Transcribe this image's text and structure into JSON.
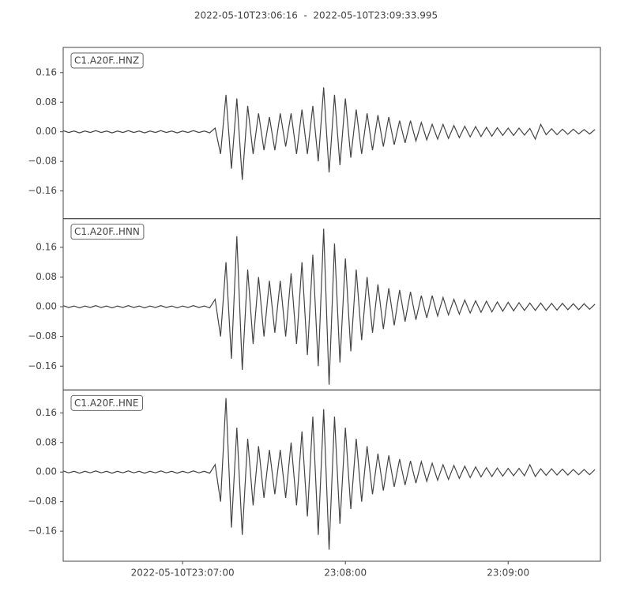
{
  "chart_data": {
    "type": "line",
    "title": "2022-05-10T23:06:16  -  2022-05-10T23:09:33.995",
    "xlim": [
      0,
      197.995
    ],
    "xticks": [
      {
        "value": 44,
        "label": "2022-05-10T23:07:00"
      },
      {
        "value": 104,
        "label": "23:08:00"
      },
      {
        "value": 164,
        "label": "23:09:00"
      }
    ],
    "x": [
      0,
      2,
      4,
      6,
      8,
      10,
      12,
      14,
      16,
      18,
      20,
      22,
      24,
      26,
      28,
      30,
      32,
      34,
      36,
      38,
      40,
      42,
      44,
      46,
      48,
      50,
      52,
      54,
      56,
      58,
      60,
      62,
      64,
      66,
      68,
      70,
      72,
      74,
      76,
      78,
      80,
      82,
      84,
      86,
      88,
      90,
      92,
      94,
      96,
      98,
      100,
      102,
      104,
      106,
      108,
      110,
      112,
      114,
      116,
      118,
      120,
      122,
      124,
      126,
      128,
      130,
      132,
      134,
      136,
      138,
      140,
      142,
      144,
      146,
      148,
      150,
      152,
      154,
      156,
      158,
      160,
      162,
      164,
      166,
      168,
      170,
      172,
      174,
      176,
      178,
      180,
      182,
      184,
      186,
      188,
      190,
      192,
      194,
      196
    ],
    "panels": [
      {
        "ylim": [
          -0.235,
          0.228
        ],
        "yticks": [
          {
            "value": 0.16,
            "label": "0.16"
          },
          {
            "value": 0.08,
            "label": "0.08"
          },
          {
            "value": 0,
            "label": "0.00"
          },
          {
            "value": -0.08,
            "label": "−0.08"
          },
          {
            "value": -0.16,
            "label": "−0.16"
          }
        ],
        "series": [
          {
            "name": "C1.A20F..HNZ",
            "color": "#444444",
            "values": [
              0.003,
              -0.002,
              0.002,
              -0.003,
              0.002,
              -0.002,
              0.003,
              -0.002,
              0.002,
              -0.003,
              0.002,
              -0.002,
              0.003,
              -0.002,
              0.002,
              -0.003,
              0.002,
              -0.002,
              0.003,
              -0.002,
              0.002,
              -0.003,
              0.002,
              -0.002,
              0.003,
              -0.002,
              0.002,
              -0.003,
              0.01,
              -0.06,
              0.1,
              -0.1,
              0.09,
              -0.13,
              0.07,
              -0.06,
              0.05,
              -0.05,
              0.04,
              -0.05,
              0.05,
              -0.04,
              0.05,
              -0.06,
              0.06,
              -0.06,
              0.07,
              -0.08,
              0.12,
              -0.11,
              0.1,
              -0.09,
              0.09,
              -0.07,
              0.06,
              -0.06,
              0.05,
              -0.05,
              0.045,
              -0.04,
              0.04,
              -0.035,
              0.03,
              -0.03,
              0.03,
              -0.025,
              0.025,
              -0.022,
              0.02,
              -0.02,
              0.02,
              -0.018,
              0.017,
              -0.016,
              0.015,
              -0.014,
              0.014,
              -0.013,
              0.012,
              -0.012,
              0.011,
              -0.01,
              0.01,
              -0.01,
              0.01,
              -0.009,
              0.009,
              -0.02,
              0.02,
              -0.008,
              0.008,
              -0.008,
              0.007,
              -0.007,
              0.007,
              -0.006,
              0.006,
              -0.006,
              0.006
            ]
          }
        ]
      },
      {
        "ylim": [
          -0.224,
          0.237
        ],
        "yticks": [
          {
            "value": 0.16,
            "label": "0.16"
          },
          {
            "value": 0.08,
            "label": "0.08"
          },
          {
            "value": 0,
            "label": "0.00"
          },
          {
            "value": -0.08,
            "label": "−0.08"
          },
          {
            "value": -0.16,
            "label": "−0.16"
          }
        ],
        "series": [
          {
            "name": "C1.A20F..HNN",
            "color": "#444444",
            "values": [
              0.003,
              -0.002,
              0.002,
              -0.003,
              0.002,
              -0.002,
              0.003,
              -0.002,
              0.002,
              -0.003,
              0.002,
              -0.002,
              0.003,
              -0.002,
              0.002,
              -0.003,
              0.002,
              -0.002,
              0.003,
              -0.002,
              0.002,
              -0.003,
              0.002,
              -0.002,
              0.003,
              -0.002,
              0.002,
              -0.003,
              0.02,
              -0.08,
              0.12,
              -0.14,
              0.19,
              -0.17,
              0.1,
              -0.1,
              0.08,
              -0.08,
              0.07,
              -0.07,
              0.07,
              -0.08,
              0.09,
              -0.1,
              0.12,
              -0.13,
              0.14,
              -0.16,
              0.21,
              -0.21,
              0.17,
              -0.15,
              0.13,
              -0.12,
              0.1,
              -0.09,
              0.08,
              -0.07,
              0.06,
              -0.06,
              0.05,
              -0.05,
              0.045,
              -0.04,
              0.04,
              -0.035,
              0.03,
              -0.03,
              0.03,
              -0.025,
              0.025,
              -0.022,
              0.02,
              -0.02,
              0.018,
              -0.017,
              0.016,
              -0.015,
              0.015,
              -0.014,
              0.013,
              -0.012,
              0.012,
              -0.011,
              0.011,
              -0.01,
              0.01,
              -0.01,
              0.01,
              -0.01,
              0.009,
              -0.009,
              0.009,
              -0.008,
              0.008,
              -0.008,
              0.008,
              -0.007,
              0.007
            ]
          }
        ]
      },
      {
        "ylim": [
          -0.241,
          0.222
        ],
        "yticks": [
          {
            "value": 0.16,
            "label": "0.16"
          },
          {
            "value": 0.08,
            "label": "0.08"
          },
          {
            "value": 0,
            "label": "0.00"
          },
          {
            "value": -0.08,
            "label": "−0.08"
          },
          {
            "value": -0.16,
            "label": "−0.16"
          }
        ],
        "series": [
          {
            "name": "C1.A20F..HNE",
            "color": "#444444",
            "values": [
              0.003,
              -0.002,
              0.002,
              -0.003,
              0.002,
              -0.002,
              0.003,
              -0.002,
              0.002,
              -0.003,
              0.002,
              -0.002,
              0.003,
              -0.002,
              0.002,
              -0.003,
              0.002,
              -0.002,
              0.003,
              -0.002,
              0.002,
              -0.003,
              0.002,
              -0.002,
              0.003,
              -0.002,
              0.002,
              -0.003,
              0.02,
              -0.08,
              0.2,
              -0.15,
              0.12,
              -0.17,
              0.09,
              -0.09,
              0.07,
              -0.07,
              0.06,
              -0.06,
              0.06,
              -0.07,
              0.08,
              -0.09,
              0.11,
              -0.12,
              0.15,
              -0.17,
              0.17,
              -0.21,
              0.15,
              -0.14,
              0.12,
              -0.1,
              0.09,
              -0.08,
              0.07,
              -0.06,
              0.05,
              -0.05,
              0.045,
              -0.04,
              0.035,
              -0.035,
              0.03,
              -0.03,
              0.028,
              -0.025,
              0.024,
              -0.022,
              0.02,
              -0.02,
              0.018,
              -0.017,
              0.016,
              -0.015,
              0.014,
              -0.013,
              0.012,
              -0.012,
              0.011,
              -0.011,
              0.01,
              -0.01,
              0.01,
              -0.01,
              0.02,
              -0.012,
              0.009,
              -0.009,
              0.009,
              -0.008,
              0.008,
              -0.008,
              0.007,
              -0.007,
              0.007,
              -0.007,
              0.007
            ]
          }
        ]
      }
    ]
  }
}
